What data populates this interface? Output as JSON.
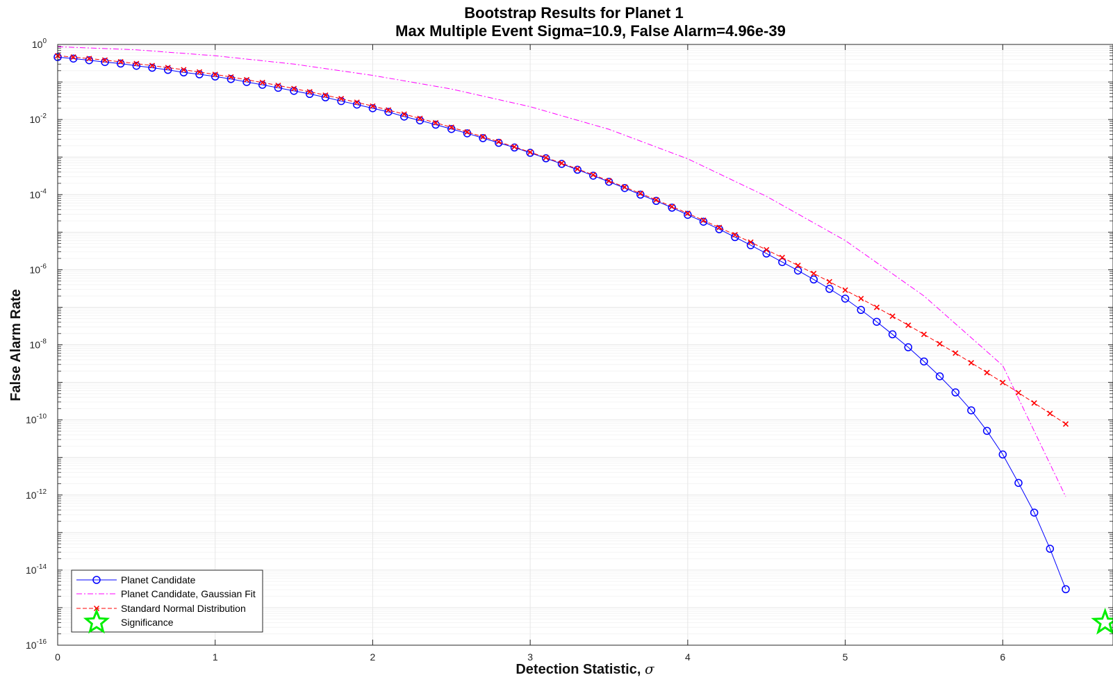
{
  "chart_data": {
    "type": "line",
    "title": "Bootstrap Results for Planet 1",
    "subtitle": "Max Multiple Event Sigma=10.9, False Alarm=4.96e-39",
    "xlabel": "Detection Statistic, σ",
    "xlabel_main": "Detection Statistic, ",
    "xlabel_symbol": "σ",
    "ylabel": "False Alarm Rate",
    "xlim": [
      0,
      6.7
    ],
    "ylim": [
      1e-16,
      1
    ],
    "yscale": "log",
    "grid": true,
    "legend_position": "bottom-left",
    "x_ticks": [
      "0",
      "1",
      "2",
      "3",
      "4",
      "5",
      "6"
    ],
    "y_ticks": [
      {
        "base": "10",
        "exp": "0"
      },
      {
        "base": "10",
        "exp": "-2"
      },
      {
        "base": "10",
        "exp": "-4"
      },
      {
        "base": "10",
        "exp": "-6"
      },
      {
        "base": "10",
        "exp": "-8"
      },
      {
        "base": "10",
        "exp": "-10"
      },
      {
        "base": "10",
        "exp": "-12"
      },
      {
        "base": "10",
        "exp": "-14"
      },
      {
        "base": "10",
        "exp": "-16"
      }
    ],
    "series": [
      {
        "name": "Planet Candidate",
        "color": "#0000ff",
        "marker": "circle",
        "x": [
          0,
          0.1,
          0.2,
          0.3,
          0.4,
          0.5,
          0.6,
          0.7,
          0.8,
          0.9,
          1.0,
          1.1,
          1.2,
          1.3,
          1.4,
          1.5,
          1.6,
          1.7,
          1.8,
          1.9,
          2.0,
          2.1,
          2.2,
          2.3,
          2.4,
          2.5,
          2.6,
          2.7,
          2.8,
          2.9,
          3.0,
          3.1,
          3.2,
          3.3,
          3.4,
          3.5,
          3.6,
          3.7,
          3.8,
          3.9,
          4.0,
          4.1,
          4.2,
          4.3,
          4.4,
          4.5,
          4.6,
          4.7,
          4.8,
          4.9,
          5.0,
          5.1,
          5.2,
          5.3,
          5.4,
          5.5,
          5.6,
          5.7,
          5.8,
          5.9,
          6.0,
          6.1,
          6.2,
          6.3,
          6.4
        ],
        "y": [
          0.46,
          0.42,
          0.38,
          0.34,
          0.31,
          0.27,
          0.24,
          0.21,
          0.18,
          0.16,
          0.14,
          0.12,
          0.1,
          0.084,
          0.07,
          0.058,
          0.048,
          0.039,
          0.031,
          0.025,
          0.02,
          0.016,
          0.012,
          0.0095,
          0.0073,
          0.0056,
          0.0043,
          0.0032,
          0.0024,
          0.0018,
          0.0013,
          0.00093,
          0.00066,
          0.00046,
          0.00032,
          0.00022,
          0.00015,
          0.0001,
          6.8e-05,
          4.5e-05,
          2.9e-05,
          1.9e-05,
          1.2e-05,
          7.4e-06,
          4.5e-06,
          2.7e-06,
          1.6e-06,
          9.5e-07,
          5.5e-07,
          3.1e-07,
          1.7e-07,
          8.5e-08,
          4.1e-08,
          1.9e-08,
          8.6e-09,
          3.6e-09,
          1.45e-09,
          5.4e-10,
          1.8e-10,
          5.1e-11,
          1.2e-11,
          2.1e-12,
          3.4e-13,
          3.7e-14,
          3.1e-15
        ]
      },
      {
        "name": "Planet Candidate, Gaussian Fit",
        "color": "#ff00ff",
        "marker": "none",
        "x": [
          0,
          0.5,
          1.0,
          1.5,
          2.0,
          2.5,
          3.0,
          3.5,
          4.0,
          4.5,
          5.0,
          5.5,
          6.0,
          6.4
        ],
        "y": [
          0.87,
          0.72,
          0.5,
          0.3,
          0.15,
          0.065,
          0.022,
          0.0055,
          0.0009,
          9e-05,
          6e-06,
          2e-07,
          2.8e-09,
          9e-13
        ]
      },
      {
        "name": "Standard Normal Distribution",
        "color": "#ff0000",
        "marker": "x",
        "x": [
          0,
          0.1,
          0.2,
          0.3,
          0.4,
          0.5,
          0.6,
          0.7,
          0.8,
          0.9,
          1.0,
          1.1,
          1.2,
          1.3,
          1.4,
          1.5,
          1.6,
          1.7,
          1.8,
          1.9,
          2.0,
          2.1,
          2.2,
          2.3,
          2.4,
          2.5,
          2.6,
          2.7,
          2.8,
          2.9,
          3.0,
          3.1,
          3.2,
          3.3,
          3.4,
          3.5,
          3.6,
          3.7,
          3.8,
          3.9,
          4.0,
          4.1,
          4.2,
          4.3,
          4.4,
          4.5,
          4.6,
          4.7,
          4.8,
          4.9,
          5.0,
          5.1,
          5.2,
          5.3,
          5.4,
          5.5,
          5.6,
          5.7,
          5.8,
          5.9,
          6.0,
          6.1,
          6.2,
          6.3,
          6.4
        ],
        "y": [
          0.5,
          0.46,
          0.421,
          0.382,
          0.345,
          0.309,
          0.274,
          0.242,
          0.212,
          0.184,
          0.159,
          0.136,
          0.115,
          0.0968,
          0.0808,
          0.0668,
          0.0548,
          0.0446,
          0.0359,
          0.0287,
          0.0228,
          0.0179,
          0.0139,
          0.0107,
          0.0082,
          0.0062,
          0.00466,
          0.00347,
          0.00256,
          0.00187,
          0.00135,
          0.00097,
          0.000687,
          0.000483,
          0.000337,
          0.000233,
          0.000159,
          0.000108,
          7.23e-05,
          4.81e-05,
          3.17e-05,
          2.07e-05,
          1.33e-05,
          8.54e-06,
          5.41e-06,
          3.4e-06,
          2.11e-06,
          1.3e-06,
          7.93e-07,
          4.79e-07,
          2.87e-07,
          1.7e-07,
          9.96e-08,
          5.79e-08,
          3.33e-08,
          1.9e-08,
          1.07e-08,
          6e-09,
          3.32e-09,
          1.82e-09,
          9.87e-10,
          5.3e-10,
          2.82e-10,
          1.49e-10,
          7.77e-11
        ]
      },
      {
        "name": "Significance",
        "color": "#00ee00",
        "marker": "star",
        "x": [
          6.65
        ],
        "y": [
          4e-16
        ]
      }
    ]
  }
}
